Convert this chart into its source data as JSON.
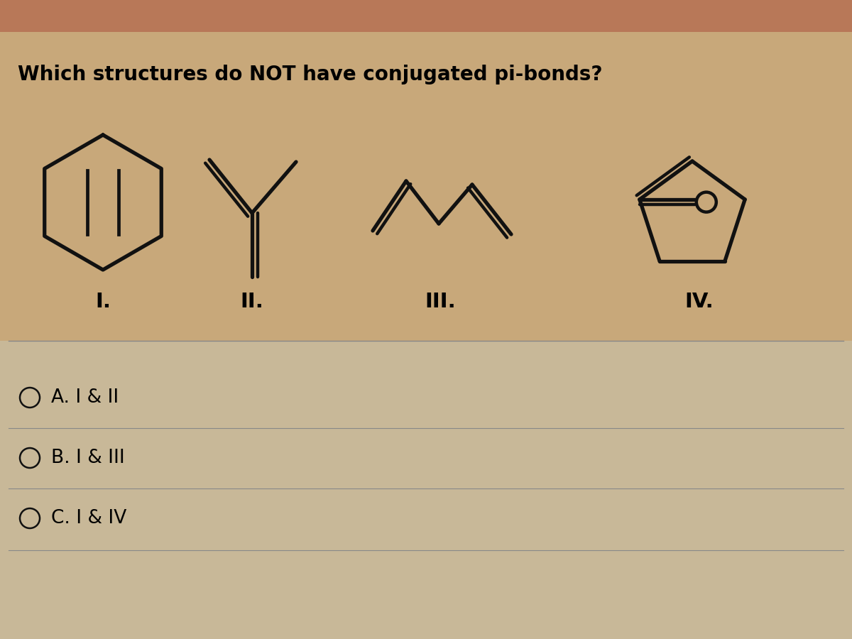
{
  "title": "Which structures do NOT have conjugated pi-bonds?",
  "title_fontsize": 20,
  "background_color": "#c8a87a",
  "top_band_color": "#b87858",
  "lower_bg_color": "#c8b898",
  "line_color": "#111111",
  "line_width": 3.8,
  "choice_labels": [
    "A. I & II",
    "B. I & III",
    "C. I & IV"
  ],
  "roman_labels": [
    "I.",
    "II.",
    "III.",
    "IV."
  ],
  "option_fontsize": 19,
  "roman_fontsize": 21
}
